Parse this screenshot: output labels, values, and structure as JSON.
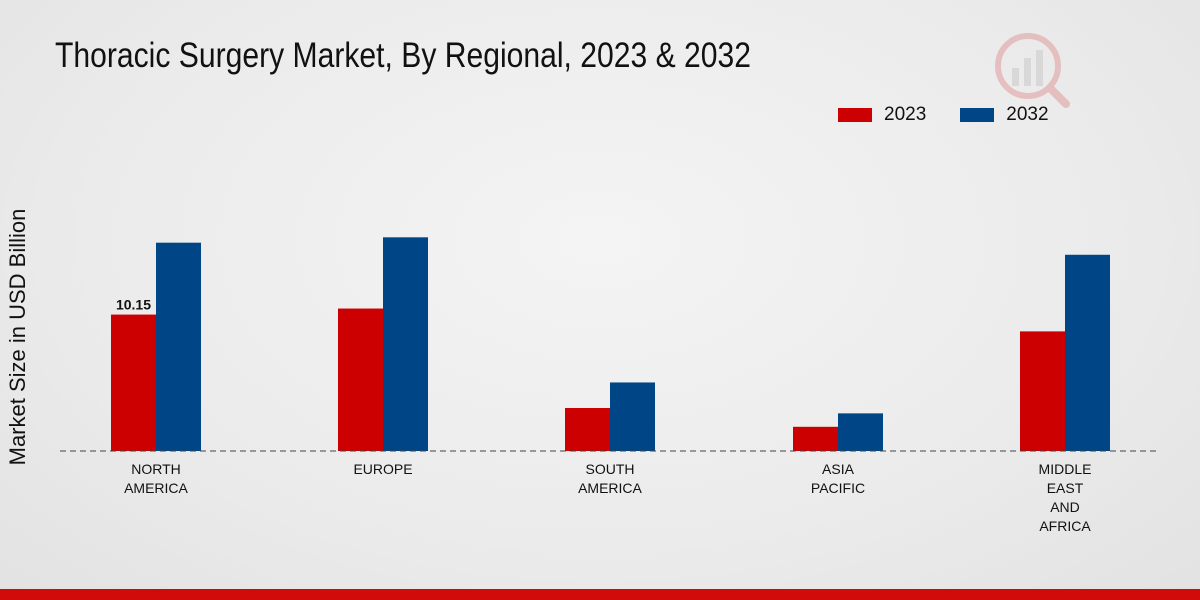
{
  "chart_data": {
    "type": "bar",
    "title": "Thoracic Surgery Market, By Regional, 2023 & 2032",
    "xlabel": "",
    "ylabel": "Market Size in USD Billion",
    "categories": [
      [
        "NORTH",
        "AMERICA"
      ],
      [
        "EUROPE"
      ],
      [
        "SOUTH",
        "AMERICA"
      ],
      [
        "ASIA",
        "PACIFIC"
      ],
      [
        "MIDDLE",
        "EAST",
        "AND",
        "AFRICA"
      ]
    ],
    "series": [
      {
        "name": "2023",
        "color": "#cc0000",
        "values": [
          10.15,
          10.6,
          3.2,
          1.8,
          8.9
        ]
      },
      {
        "name": "2032",
        "color": "#004687",
        "values": [
          15.5,
          15.9,
          5.1,
          2.8,
          14.6
        ]
      }
    ],
    "data_labels": [
      {
        "series": 0,
        "index": 0,
        "text": "10.15"
      }
    ],
    "ylim": [
      0,
      25
    ],
    "grid": false,
    "legend_position": "top-right"
  }
}
